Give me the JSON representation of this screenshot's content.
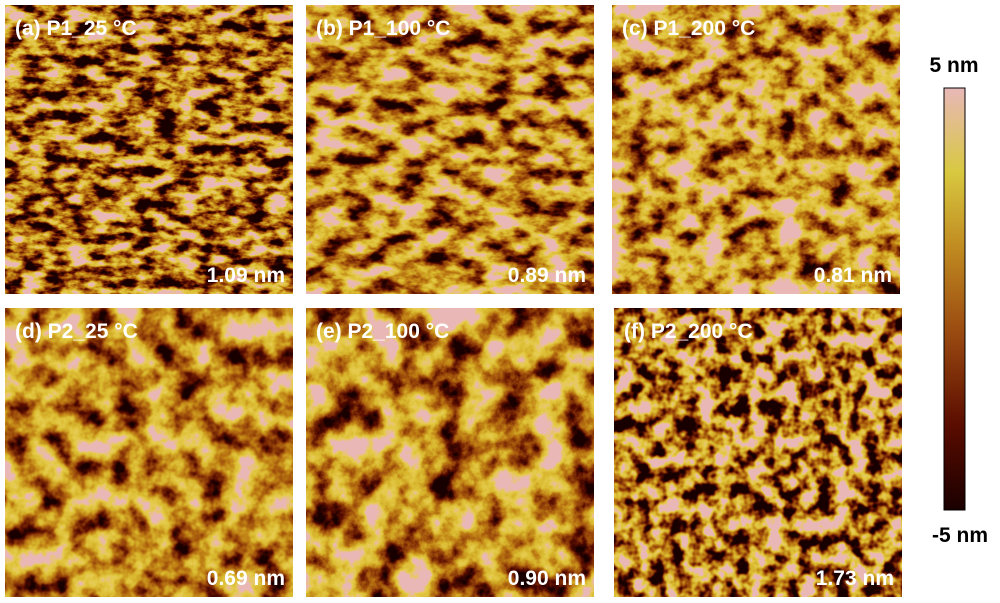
{
  "panels": [
    {
      "label": "(a) P1_25 °C",
      "roughness": "1.09 nm"
    },
    {
      "label": "(b) P1_100 °C",
      "roughness": "0.89 nm"
    },
    {
      "label": "(c) P1_200 °C",
      "roughness": "0.81 nm"
    },
    {
      "label": "(d) P2_25 °C",
      "roughness": "0.69 nm"
    },
    {
      "label": "(e) P2_100 °C",
      "roughness": "0.90 nm"
    },
    {
      "label": "(f) P2_200 °C",
      "roughness": "1.73 nm"
    }
  ],
  "colorbar": {
    "max": "5 nm",
    "min": "-5 nm"
  }
}
